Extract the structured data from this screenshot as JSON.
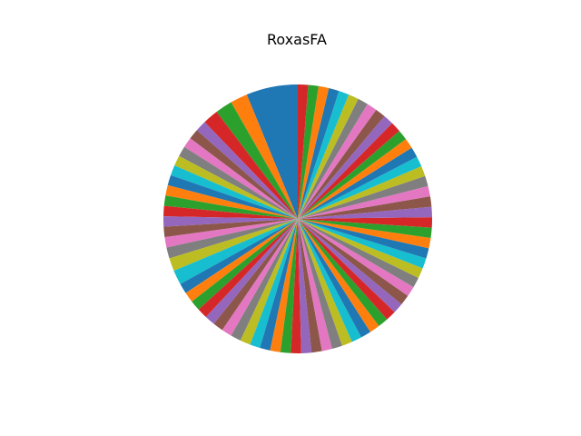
{
  "chart_data": {
    "type": "pie",
    "title": "RoxasFA",
    "start_angle_deg": 90,
    "direction": "counterclockwise",
    "colors": [
      "#1f77b4",
      "#ff7f0e",
      "#2ca02c",
      "#d62728",
      "#9467bd",
      "#8c564b",
      "#e377c2",
      "#7f7f7f",
      "#bcbd22",
      "#17becf"
    ],
    "values": [
      6.0,
      2.0,
      2.0,
      1.8,
      1.3,
      1.2,
      1.2,
      1.2,
      1.2,
      1.2,
      1.2,
      1.2,
      1.2,
      1.2,
      1.2,
      1.2,
      1.2,
      1.3,
      1.5,
      1.7,
      1.2,
      1.2,
      1.2,
      1.2,
      1.2,
      1.2,
      1.2,
      1.2,
      1.2,
      1.2,
      1.2,
      1.2,
      1.2,
      1.2,
      1.2,
      1.2,
      1.2,
      1.2,
      1.2,
      1.2,
      1.2,
      1.2,
      1.2,
      1.2,
      1.2,
      1.2,
      1.2,
      1.2,
      1.2,
      1.2,
      1.2,
      1.2,
      1.2,
      1.2,
      1.2,
      1.2,
      1.2,
      1.2,
      1.2,
      1.2,
      1.2,
      1.2,
      1.2,
      1.2,
      1.2,
      1.2,
      1.2,
      1.2,
      1.2,
      1.2,
      1.2,
      1.2,
      1.2,
      1.2
    ]
  }
}
